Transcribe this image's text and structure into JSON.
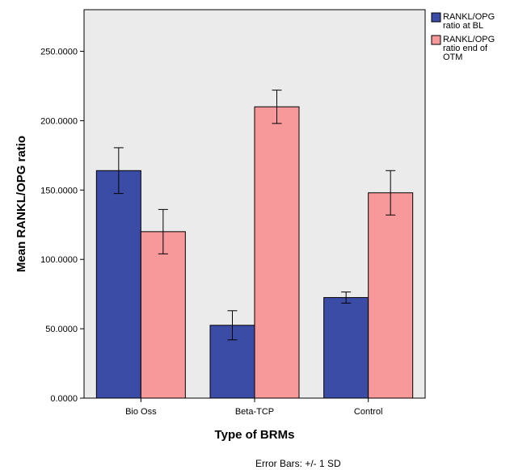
{
  "chart_data": {
    "type": "bar",
    "xlabel": "Type of BRMs",
    "ylabel": "Mean RANKL/OPG ratio",
    "categories": [
      "Bio Oss",
      "Beta-TCP",
      "Control"
    ],
    "ylim": [
      0,
      280
    ],
    "yticks": [
      "0.0000",
      "50.0000",
      "100.0000",
      "150.0000",
      "200.0000",
      "250.0000"
    ],
    "ytick_values": [
      0,
      50,
      100,
      150,
      200,
      250
    ],
    "series": [
      {
        "name": "RANKL/OPG ratio at BL",
        "legend_lines": [
          "RANKL/OPG",
          "ratio at BL"
        ],
        "color": "#3b4ca6",
        "values": [
          164,
          52.5,
          72.5
        ],
        "error": [
          16.5,
          10.5,
          4
        ]
      },
      {
        "name": "RANKL/OPG ratio end of OTM",
        "legend_lines": [
          "RANKL/OPG",
          "ratio end of",
          "OTM"
        ],
        "color": "#f7999a",
        "values": [
          120,
          210,
          148
        ],
        "error": [
          16,
          12,
          16
        ]
      }
    ],
    "footnote": "Error Bars: +/- 1 SD",
    "plot_background": "#ebebeb",
    "grid": false,
    "legend_position": "right"
  }
}
